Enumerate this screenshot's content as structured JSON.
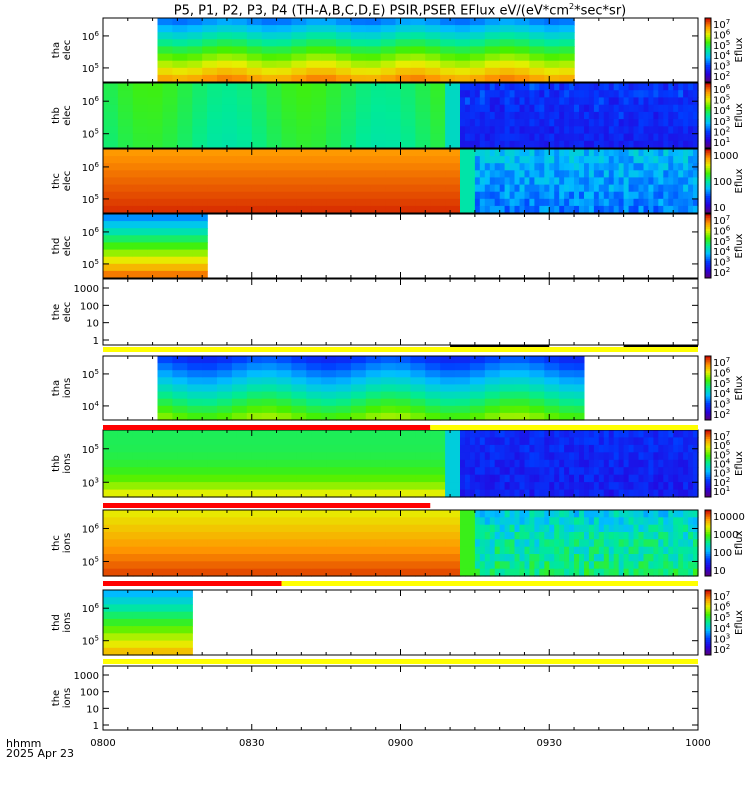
{
  "title": "P5, P1, P2, P3, P4 (TH-A,B,C,D,E) PSIR,PSER EFlux eV/(eV*cm2*sec*sr)",
  "title_parts": {
    "prefix": "P5, P1, P2, P3, P4 (TH-A,B,C,D,E) PSIR,PSER EFlux eV/(eV*cm",
    "superscript": "2",
    "suffix": "*sec*sr)"
  },
  "footer": {
    "time_label": "hhmm",
    "date_label": "2025 Apr 23"
  },
  "colors": {
    "flag_yellow": "#ffff00",
    "flag_red": "#ff0000",
    "flag_black": "#000000"
  },
  "chart_data": {
    "type": "heatmap",
    "x_ticks": [
      "0800",
      "0830",
      "0900",
      "0930",
      "1000"
    ],
    "x_range": [
      "08:00",
      "10:00"
    ],
    "colorbar_label": "Eflux",
    "panels": [
      {
        "name": "tha_elec",
        "label": [
          "tha",
          "elec"
        ],
        "y_ticks": [
          "10^5",
          "10^6"
        ],
        "colorbar_ticks": [
          "10^2",
          "10^3",
          "10^4",
          "10^5",
          "10^6",
          "10^7"
        ],
        "coverage": [
          "08:11",
          "09:35"
        ],
        "pattern": "tha_e"
      },
      {
        "name": "thb_elec",
        "label": [
          "thb",
          "elec"
        ],
        "y_ticks": [
          "10^5",
          "10^6"
        ],
        "colorbar_ticks": [
          "10^1",
          "10^2",
          "10^3",
          "10^4",
          "10^5",
          "10^6"
        ],
        "coverage": [
          "08:00",
          "10:00"
        ],
        "pattern": "thb_e"
      },
      {
        "name": "thc_elec",
        "label": [
          "thc",
          "elec"
        ],
        "y_ticks": [
          "10^5",
          "10^6"
        ],
        "colorbar_ticks": [
          "10",
          "100",
          "1000"
        ],
        "coverage": [
          "08:00",
          "10:00"
        ],
        "pattern": "thc_e"
      },
      {
        "name": "thd_elec",
        "label": [
          "thd",
          "elec"
        ],
        "y_ticks": [
          "10^5",
          "10^6"
        ],
        "colorbar_ticks": [
          "10^2",
          "10^3",
          "10^4",
          "10^5",
          "10^6",
          "10^7"
        ],
        "coverage": [
          "08:00",
          "08:21"
        ],
        "pattern": "thd_e"
      },
      {
        "name": "the_elec",
        "label": [
          "the",
          "elec"
        ],
        "y_ticks": [
          "1",
          "10",
          "100",
          "1000"
        ],
        "colorbar_ticks": [],
        "coverage": [],
        "pattern": "empty"
      },
      {
        "name": "tha_ions",
        "label": [
          "tha",
          "ions"
        ],
        "y_ticks": [
          "10^4",
          "10^5"
        ],
        "colorbar_ticks": [
          "10^2",
          "10^3",
          "10^4",
          "10^5",
          "10^6",
          "10^7"
        ],
        "coverage": [
          "08:11",
          "09:37"
        ],
        "pattern": "tha_i"
      },
      {
        "name": "thb_ions",
        "label": [
          "thb",
          "ions"
        ],
        "y_ticks": [
          "10^3",
          "10^5"
        ],
        "colorbar_ticks": [
          "10^1",
          "10^2",
          "10^3",
          "10^4",
          "10^5",
          "10^6",
          "10^7"
        ],
        "coverage": [
          "08:00",
          "10:00"
        ],
        "pattern": "thb_i"
      },
      {
        "name": "thc_ions",
        "label": [
          "thc",
          "ions"
        ],
        "y_ticks": [
          "10^5",
          "10^6"
        ],
        "colorbar_ticks": [
          "10",
          "100",
          "1000",
          "10000"
        ],
        "coverage": [
          "08:00",
          "10:00"
        ],
        "pattern": "thc_i"
      },
      {
        "name": "thd_ions",
        "label": [
          "thd",
          "ions"
        ],
        "y_ticks": [
          "10^5",
          "10^6"
        ],
        "colorbar_ticks": [
          "10^2",
          "10^3",
          "10^4",
          "10^5",
          "10^6",
          "10^7"
        ],
        "coverage": [
          "08:00",
          "08:18"
        ],
        "pattern": "thd_i"
      },
      {
        "name": "the_ions",
        "label": [
          "the",
          "ions"
        ],
        "y_ticks": [
          "1",
          "10",
          "100",
          "1000"
        ],
        "colorbar_ticks": [],
        "coverage": [],
        "pattern": "empty"
      }
    ],
    "flag_bars": [
      {
        "after_panel": "the_elec",
        "segments": [
          {
            "from": "08:00",
            "to": "10:00",
            "color": "yellow"
          }
        ],
        "marks": [
          {
            "from": "09:10",
            "to": "09:30",
            "color": "black"
          },
          {
            "from": "09:45",
            "to": "10:00",
            "color": "black"
          }
        ]
      },
      {
        "after_panel": "tha_ions",
        "segments": [
          {
            "from": "08:00",
            "to": "09:06",
            "color": "red"
          },
          {
            "from": "09:06",
            "to": "10:00",
            "color": "yellow"
          }
        ],
        "marks": []
      },
      {
        "after_panel": "thb_ions",
        "segments": [
          {
            "from": "08:00",
            "to": "09:06",
            "color": "red"
          }
        ],
        "marks": []
      },
      {
        "after_panel": "thc_ions",
        "segments": [
          {
            "from": "08:00",
            "to": "08:36",
            "color": "red"
          },
          {
            "from": "08:36",
            "to": "10:00",
            "color": "yellow"
          }
        ],
        "marks": []
      },
      {
        "after_panel": "thd_ions",
        "segments": [
          {
            "from": "08:00",
            "to": "10:00",
            "color": "yellow"
          }
        ],
        "marks": []
      }
    ]
  }
}
